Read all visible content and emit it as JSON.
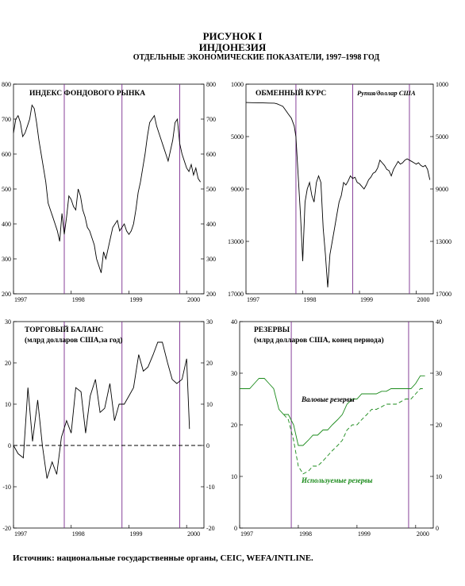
{
  "figure": {
    "title": "РИСУНОК I",
    "country": "ИНДОНЕЗИЯ",
    "subtitle": "ОТДЕЛЬНЫЕ ЭКОНОМИЧЕСКИЕ ПОКАЗАТЕЛИ, 1997–1998 ГОД",
    "source": "Источник: национальные государственные органы, CEIC, WEFA/INTLINE."
  },
  "colors": {
    "line": "#000000",
    "reserves": "#1a8a1a",
    "vline": "#7b2c8f",
    "axis": "#000000"
  },
  "chart_data": [
    {
      "id": "stock",
      "type": "line",
      "title": "ИНДЕКС ФОНДОВОГО РЫНКА",
      "xlabel": "",
      "ylabel": "",
      "xlim": [
        1997.0,
        2000.3
      ],
      "ylim": [
        200,
        800
      ],
      "left_ticks": [
        "200",
        "300",
        "400",
        "500",
        "600",
        "700",
        "800"
      ],
      "right_ticks": [
        "200",
        "300",
        "400",
        "500",
        "600",
        "700",
        "800"
      ],
      "tick_values": [
        200,
        300,
        400,
        500,
        600,
        700,
        800
      ],
      "x_tick_labels": [
        "1997",
        "1998",
        "1999",
        "2000"
      ],
      "x_tick_values": [
        1997,
        1998,
        1999,
        2000
      ],
      "vlines": [
        1997.88,
        1998.88,
        1999.88
      ],
      "series": [
        {
          "color": "line",
          "dash": false,
          "x": [
            1997.0,
            1997.04,
            1997.08,
            1997.12,
            1997.16,
            1997.2,
            1997.24,
            1997.28,
            1997.32,
            1997.36,
            1997.4,
            1997.44,
            1997.48,
            1997.52,
            1997.56,
            1997.6,
            1997.64,
            1997.68,
            1997.72,
            1997.76,
            1997.8,
            1997.84,
            1997.88,
            1997.92,
            1997.96,
            1998.0,
            1998.04,
            1998.08,
            1998.12,
            1998.16,
            1998.2,
            1998.24,
            1998.28,
            1998.32,
            1998.36,
            1998.4,
            1998.44,
            1998.48,
            1998.52,
            1998.56,
            1998.6,
            1998.64,
            1998.68,
            1998.72,
            1998.76,
            1998.8,
            1998.84,
            1998.88,
            1998.92,
            1998.96,
            1999.0,
            1999.04,
            1999.08,
            1999.12,
            1999.16,
            1999.2,
            1999.24,
            1999.28,
            1999.32,
            1999.36,
            1999.4,
            1999.44,
            1999.48,
            1999.52,
            1999.56,
            1999.6,
            1999.64,
            1999.68,
            1999.72,
            1999.76,
            1999.8,
            1999.84,
            1999.88,
            1999.92,
            1999.96,
            2000.0,
            2000.04,
            2000.08,
            2000.12,
            2000.16,
            2000.2,
            2000.24
          ],
          "y": [
            660,
            700,
            710,
            690,
            650,
            660,
            680,
            700,
            740,
            730,
            690,
            640,
            600,
            560,
            520,
            460,
            440,
            420,
            400,
            380,
            350,
            430,
            370,
            420,
            480,
            470,
            450,
            440,
            500,
            480,
            440,
            420,
            390,
            380,
            360,
            340,
            300,
            280,
            260,
            320,
            300,
            330,
            360,
            390,
            400,
            410,
            380,
            390,
            400,
            380,
            370,
            380,
            400,
            440,
            490,
            520,
            560,
            600,
            650,
            690,
            700,
            710,
            680,
            660,
            640,
            620,
            600,
            580,
            610,
            640,
            690,
            700,
            630,
            600,
            580,
            560,
            550,
            570,
            540,
            560,
            530,
            520
          ]
        }
      ]
    },
    {
      "id": "fx",
      "type": "line",
      "title": "ОБМЕННЫЙ КУРС",
      "unit": "Рупия/доллар США",
      "xlim": [
        1997.0,
        2000.3
      ],
      "ylim": [
        17000,
        1000
      ],
      "inverted": true,
      "left_ticks": [
        "1000",
        "5000",
        "9000",
        "13000",
        "17000"
      ],
      "right_ticks": [
        "1000",
        "5000",
        "9000",
        "13000",
        "17000"
      ],
      "tick_values": [
        1000,
        5000,
        9000,
        13000,
        17000
      ],
      "x_tick_labels": [
        "1997",
        "1998",
        "1999",
        "2000"
      ],
      "x_tick_values": [
        1997,
        1998,
        1999,
        2000
      ],
      "vlines": [
        1997.88,
        1998.88,
        1999.88
      ],
      "series": [
        {
          "color": "line",
          "dash": false,
          "x": [
            1997.0,
            1997.1,
            1997.2,
            1997.3,
            1997.4,
            1997.5,
            1997.55,
            1997.6,
            1997.65,
            1997.7,
            1997.75,
            1997.8,
            1997.85,
            1997.88,
            1997.92,
            1997.96,
            1998.0,
            1998.04,
            1998.08,
            1998.12,
            1998.16,
            1998.2,
            1998.24,
            1998.28,
            1998.32,
            1998.36,
            1998.4,
            1998.44,
            1998.48,
            1998.52,
            1998.56,
            1998.6,
            1998.64,
            1998.68,
            1998.72,
            1998.76,
            1998.8,
            1998.84,
            1998.88,
            1998.92,
            1998.96,
            1999.0,
            1999.04,
            1999.08,
            1999.12,
            1999.16,
            1999.2,
            1999.24,
            1999.28,
            1999.32,
            1999.36,
            1999.4,
            1999.44,
            1999.48,
            1999.52,
            1999.56,
            1999.6,
            1999.64,
            1999.68,
            1999.72,
            1999.76,
            1999.8,
            1999.84,
            1999.88,
            1999.92,
            1999.96,
            2000.0,
            2000.04,
            2000.08,
            2000.12,
            2000.16,
            2000.2,
            2000.24
          ],
          "y": [
            2400,
            2410,
            2420,
            2430,
            2440,
            2450,
            2500,
            2600,
            2700,
            3000,
            3300,
            3600,
            4200,
            5000,
            8000,
            11000,
            14500,
            10000,
            9000,
            8500,
            9500,
            10000,
            8500,
            8000,
            8500,
            12000,
            14000,
            16500,
            14000,
            13000,
            12000,
            11000,
            10000,
            9500,
            8500,
            8700,
            8400,
            8000,
            8200,
            8100,
            8500,
            8600,
            8800,
            9000,
            8700,
            8300,
            8100,
            7800,
            7700,
            7400,
            6800,
            7000,
            7200,
            7500,
            7600,
            8000,
            7500,
            7200,
            6900,
            7100,
            7000,
            6800,
            6700,
            6800,
            6900,
            7000,
            7100,
            7000,
            7200,
            7300,
            7200,
            7500,
            8300
          ]
        }
      ]
    },
    {
      "id": "trade",
      "type": "line",
      "title": "ТОРГОВЫЙ БАЛАНС",
      "subtitle": "(млрд долларов США,за год)",
      "xlim": [
        1997.0,
        2000.3
      ],
      "ylim": [
        -20,
        30
      ],
      "left_ticks": [
        "-20",
        "-10",
        "0",
        "10",
        "20",
        "30"
      ],
      "right_ticks": [
        "-20",
        "-10",
        "0",
        "10",
        "20",
        "30"
      ],
      "tick_values": [
        -20,
        -10,
        0,
        10,
        20,
        30
      ],
      "x_tick_labels": [
        "1997",
        "1998",
        "1999",
        "2000"
      ],
      "x_tick_values": [
        1997,
        1998,
        1999,
        2000
      ],
      "vlines": [
        1997.88,
        1998.88,
        1999.88
      ],
      "zero_line": 0,
      "series": [
        {
          "color": "line",
          "dash": false,
          "x": [
            1997.0,
            1997.08,
            1997.17,
            1997.25,
            1997.33,
            1997.42,
            1997.5,
            1997.58,
            1997.67,
            1997.75,
            1997.83,
            1997.92,
            1998.0,
            1998.08,
            1998.17,
            1998.25,
            1998.33,
            1998.42,
            1998.5,
            1998.58,
            1998.67,
            1998.75,
            1998.83,
            1998.92,
            1999.0,
            1999.08,
            1999.17,
            1999.25,
            1999.33,
            1999.42,
            1999.5,
            1999.58,
            1999.67,
            1999.75,
            1999.83,
            1999.92,
            2000.0,
            2000.05
          ],
          "y": [
            0,
            -2,
            -3,
            14,
            1,
            11,
            0,
            -8,
            -4,
            -7,
            2,
            6,
            3,
            14,
            13,
            3,
            12,
            16,
            8,
            9,
            15,
            6,
            10,
            10,
            12,
            14,
            22,
            18,
            19,
            22,
            25,
            25,
            20,
            16,
            15,
            16,
            21,
            4
          ]
        },
        {
          "color": "line",
          "dash": true,
          "x": [
            1997.0,
            2000.3
          ],
          "y": [
            0,
            0
          ]
        }
      ]
    },
    {
      "id": "reserves",
      "type": "line",
      "title": "РЕЗЕРВЫ",
      "subtitle": "(млрд долларов США, конец периода)",
      "xlim": [
        1997.0,
        2000.3
      ],
      "ylim": [
        0,
        40
      ],
      "left_ticks": [
        "0",
        "10",
        "20",
        "30",
        "40"
      ],
      "right_ticks": [
        "0",
        "10",
        "20",
        "30",
        "40"
      ],
      "tick_values": [
        0,
        10,
        20,
        30,
        40
      ],
      "x_tick_labels": [
        "1997",
        "1998",
        "1999",
        "2000"
      ],
      "x_tick_values": [
        1997,
        1998,
        1999,
        2000
      ],
      "vlines": [
        1997.88,
        1999.88
      ],
      "series": [
        {
          "name": "Валовые резервы",
          "color": "reserves",
          "dash": false,
          "x": [
            1997.0,
            1997.08,
            1997.17,
            1997.25,
            1997.33,
            1997.42,
            1997.5,
            1997.58,
            1997.67,
            1997.75,
            1997.83,
            1997.92,
            1998.0,
            1998.08,
            1998.17,
            1998.25,
            1998.33,
            1998.42,
            1998.5,
            1998.58,
            1998.67,
            1998.75,
            1998.83,
            1998.92,
            1999.0,
            1999.08,
            1999.17,
            1999.25,
            1999.33,
            1999.42,
            1999.5,
            1999.58,
            1999.67,
            1999.75,
            1999.83,
            1999.92,
            2000.0,
            2000.08,
            2000.16
          ],
          "y": [
            27,
            27,
            27,
            28,
            29,
            29,
            28,
            27,
            23,
            22,
            22,
            20,
            16,
            16,
            17,
            18,
            18,
            19,
            19,
            20,
            21,
            22,
            24,
            25,
            25,
            26,
            26,
            26,
            26,
            26.5,
            26.5,
            27,
            27,
            27,
            27,
            27,
            28,
            29.5,
            29.5
          ]
        },
        {
          "name": "Используемые резервы",
          "color": "reserves",
          "dash": true,
          "x": [
            1997.75,
            1997.83,
            1997.92,
            1998.0,
            1998.08,
            1998.17,
            1998.25,
            1998.33,
            1998.42,
            1998.5,
            1998.58,
            1998.67,
            1998.75,
            1998.83,
            1998.92,
            1999.0,
            1999.08,
            1999.17,
            1999.25,
            1999.33,
            1999.42,
            1999.5,
            1999.58,
            1999.67,
            1999.75,
            1999.83,
            1999.92,
            2000.0,
            2000.08,
            2000.16
          ],
          "y": [
            22,
            21,
            17,
            12,
            10.5,
            11,
            12,
            12,
            13,
            14,
            15,
            16,
            17,
            19,
            20,
            20,
            21,
            22,
            23,
            23,
            23.5,
            24,
            24,
            24,
            24.5,
            25,
            25,
            26,
            27,
            27
          ]
        }
      ],
      "labels": [
        "Валовые резервы",
        "Используемые резервы"
      ]
    }
  ]
}
